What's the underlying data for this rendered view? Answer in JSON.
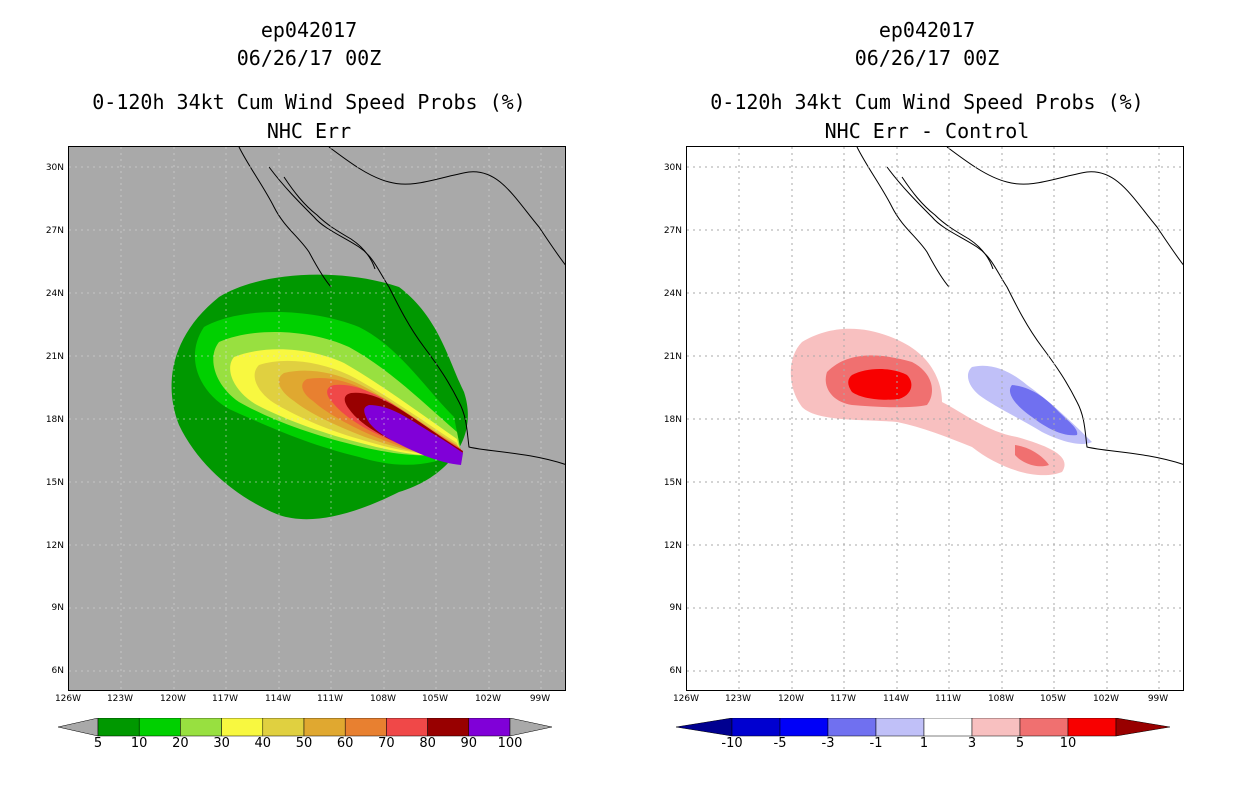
{
  "left": {
    "storm_id": "ep042017",
    "datetime": "06/26/17 00Z",
    "product": "0-120h 34kt Cum Wind Speed Probs (%)",
    "subtitle": "NHC Err",
    "background_color": "#a9a9a9",
    "colorbar": {
      "labels": [
        "5",
        "10",
        "20",
        "30",
        "40",
        "50",
        "60",
        "70",
        "80",
        "90",
        "100"
      ],
      "colors": [
        "#009800",
        "#00d000",
        "#98e040",
        "#f8f840",
        "#e0d040",
        "#e0a830",
        "#e88030",
        "#f04848",
        "#980000",
        "#8000d8"
      ]
    }
  },
  "right": {
    "storm_id": "ep042017",
    "datetime": "06/26/17 00Z",
    "product": "0-120h 34kt Cum Wind Speed Probs (%)",
    "subtitle": "NHC Err - Control",
    "background_color": "#ffffff",
    "colorbar": {
      "labels": [
        "-10",
        "-5",
        "-3",
        "-1",
        "1",
        "3",
        "5",
        "10"
      ],
      "colors": [
        "#0000d0",
        "#0000f8",
        "#7070f0",
        "#c0c0f8",
        "#ffffff",
        "#f8c0c0",
        "#f07070",
        "#f80000"
      ],
      "end_colors": [
        "#000090",
        "#980000"
      ]
    }
  },
  "axes": {
    "lat_labels": [
      "30N",
      "27N",
      "24N",
      "21N",
      "18N",
      "15N",
      "12N",
      "9N",
      "6N"
    ],
    "lon_labels": [
      "126W",
      "123W",
      "120W",
      "117W",
      "114W",
      "111W",
      "108W",
      "105W",
      "102W",
      "99W"
    ]
  }
}
